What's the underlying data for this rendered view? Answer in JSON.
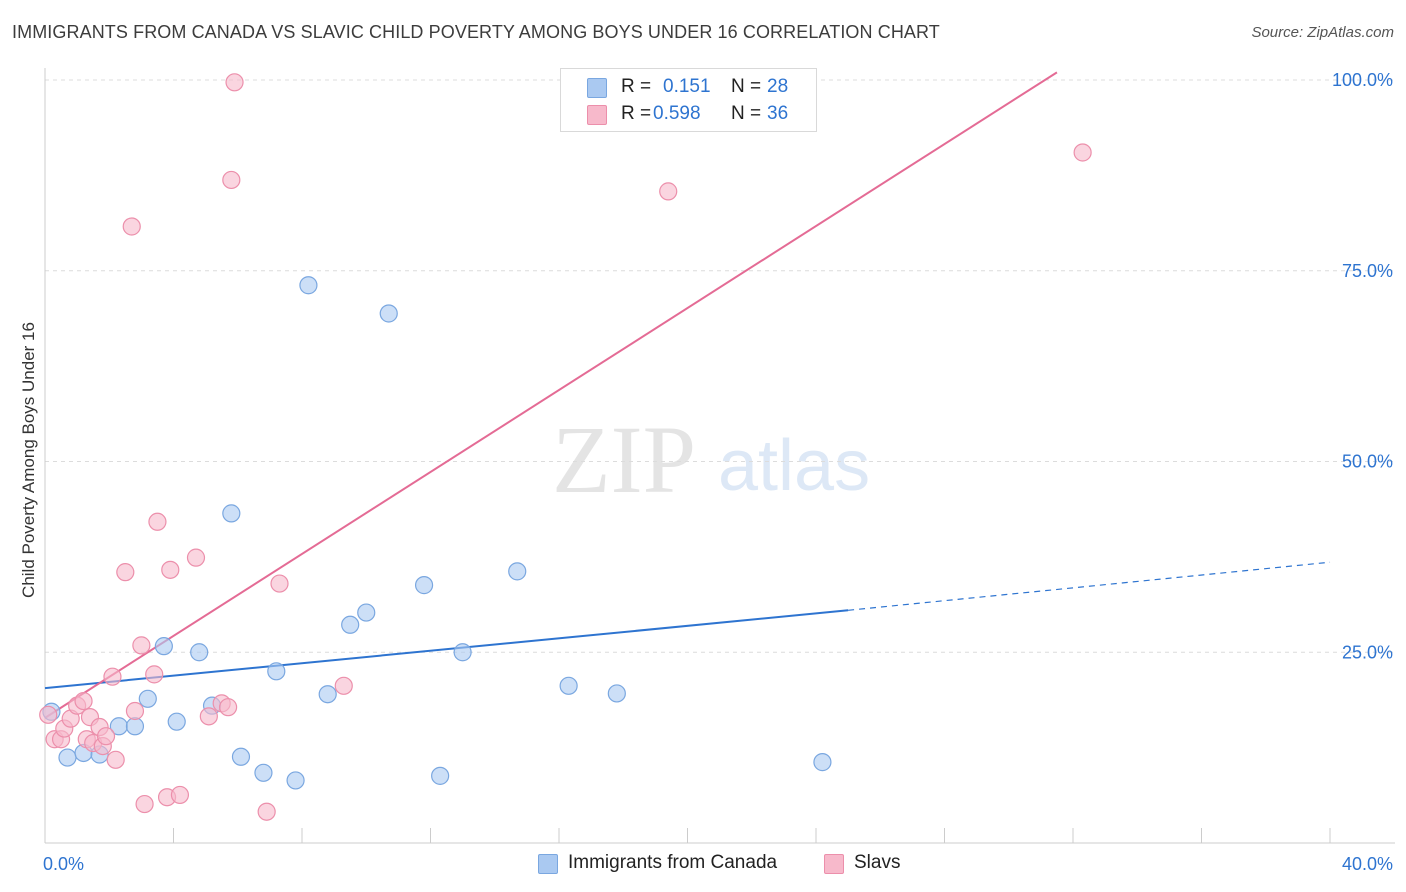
{
  "header": {
    "title": "IMMIGRANTS FROM CANADA VS SLAVIC CHILD POVERTY AMONG BOYS UNDER 16 CORRELATION CHART",
    "source": "Source: ZipAtlas.com"
  },
  "watermark": {
    "zip": "ZIP",
    "atlas": "atlas"
  },
  "legend": {
    "rows": [
      {
        "r_label": "R =",
        "r_value": "0.151",
        "n_label": "N =",
        "n_value": "28",
        "color": "#aac9f1"
      },
      {
        "r_label": "R =",
        "r_value": "0.598",
        "n_label": "N =",
        "n_value": "36",
        "color": "#f7b9cb"
      }
    ]
  },
  "bottom_legend": {
    "items": [
      {
        "label": "Immigrants from Canada",
        "color": "#aac9f1"
      },
      {
        "label": "Slavs",
        "color": "#f7b9cb"
      }
    ]
  },
  "colors": {
    "blue_fill": "#aac9f1",
    "blue_stroke": "#7aa7e0",
    "blue_line": "#2e74d0",
    "pink_fill": "#f7b9cb",
    "pink_stroke": "#ec8fab",
    "pink_line": "#e46b95",
    "tick_text": "#2e74d0",
    "grid": "#dcdcdc"
  },
  "chart_data": {
    "type": "scatter",
    "title": "IMMIGRANTS FROM CANADA VS SLAVIC CHILD POVERTY AMONG BOYS UNDER 16 CORRELATION CHART",
    "xlabel": "",
    "ylabel": "Child Poverty Among Boys Under 16",
    "xlim": [
      0,
      40
    ],
    "ylim": [
      0,
      100
    ],
    "x_tick_labels": [
      {
        "value": 0,
        "label": "0.0%"
      },
      {
        "value": 40,
        "label": "40.0%"
      }
    ],
    "y_tick_labels": [
      {
        "value": 25,
        "label": "25.0%"
      },
      {
        "value": 50,
        "label": "50.0%"
      },
      {
        "value": 75,
        "label": "75.0%"
      },
      {
        "value": 100,
        "label": "100.0%"
      }
    ],
    "grid": true,
    "legend_position": "top-center",
    "series": [
      {
        "name": "Immigrants from Canada",
        "r": 0.151,
        "n": 28,
        "points": [
          [
            0.2,
            17.2
          ],
          [
            0.7,
            11.2
          ],
          [
            1.2,
            11.8
          ],
          [
            1.7,
            11.6
          ],
          [
            2.3,
            15.3
          ],
          [
            2.8,
            15.3
          ],
          [
            3.2,
            18.9
          ],
          [
            3.7,
            25.8
          ],
          [
            4.1,
            15.9
          ],
          [
            4.8,
            25.0
          ],
          [
            5.2,
            18.0
          ],
          [
            5.8,
            43.2
          ],
          [
            6.1,
            11.3
          ],
          [
            6.8,
            9.2
          ],
          [
            7.2,
            22.5
          ],
          [
            7.8,
            8.2
          ],
          [
            8.2,
            73.1
          ],
          [
            8.8,
            19.5
          ],
          [
            9.5,
            28.6
          ],
          [
            10.0,
            30.2
          ],
          [
            10.7,
            69.4
          ],
          [
            11.8,
            33.8
          ],
          [
            12.3,
            8.8
          ],
          [
            13.0,
            25.0
          ],
          [
            14.7,
            35.6
          ],
          [
            16.3,
            20.6
          ],
          [
            17.8,
            19.6
          ],
          [
            24.2,
            10.6
          ]
        ],
        "trend": {
          "x0": 0,
          "y0": 20.3,
          "x1": 25,
          "y1": 30.5,
          "dashed_to_x": 40,
          "dashed_to_y": 36.8
        }
      },
      {
        "name": "Slavs",
        "r": 0.598,
        "n": 36,
        "points": [
          [
            0.1,
            16.8
          ],
          [
            0.3,
            13.6
          ],
          [
            0.5,
            13.6
          ],
          [
            0.6,
            15.0
          ],
          [
            0.8,
            16.3
          ],
          [
            1.0,
            18.0
          ],
          [
            1.2,
            18.6
          ],
          [
            1.3,
            13.6
          ],
          [
            1.4,
            16.5
          ],
          [
            1.5,
            13.1
          ],
          [
            1.7,
            15.2
          ],
          [
            1.8,
            12.7
          ],
          [
            1.9,
            14.0
          ],
          [
            2.1,
            21.8
          ],
          [
            2.2,
            10.9
          ],
          [
            2.5,
            35.5
          ],
          [
            2.7,
            80.8
          ],
          [
            2.8,
            17.3
          ],
          [
            3.0,
            25.9
          ],
          [
            3.1,
            5.1
          ],
          [
            3.4,
            22.1
          ],
          [
            3.5,
            42.1
          ],
          [
            3.8,
            6.0
          ],
          [
            3.9,
            35.8
          ],
          [
            4.2,
            6.3
          ],
          [
            4.7,
            37.4
          ],
          [
            5.1,
            16.6
          ],
          [
            5.5,
            18.3
          ],
          [
            5.7,
            17.8
          ],
          [
            5.8,
            86.9
          ],
          [
            5.9,
            99.7
          ],
          [
            6.9,
            4.1
          ],
          [
            7.3,
            34.0
          ],
          [
            9.3,
            20.6
          ],
          [
            19.4,
            85.4
          ],
          [
            32.3,
            90.5
          ]
        ],
        "trend": {
          "x0": 0,
          "y0": 16.4,
          "x1": 31.5,
          "y1": 101.0
        }
      }
    ]
  }
}
